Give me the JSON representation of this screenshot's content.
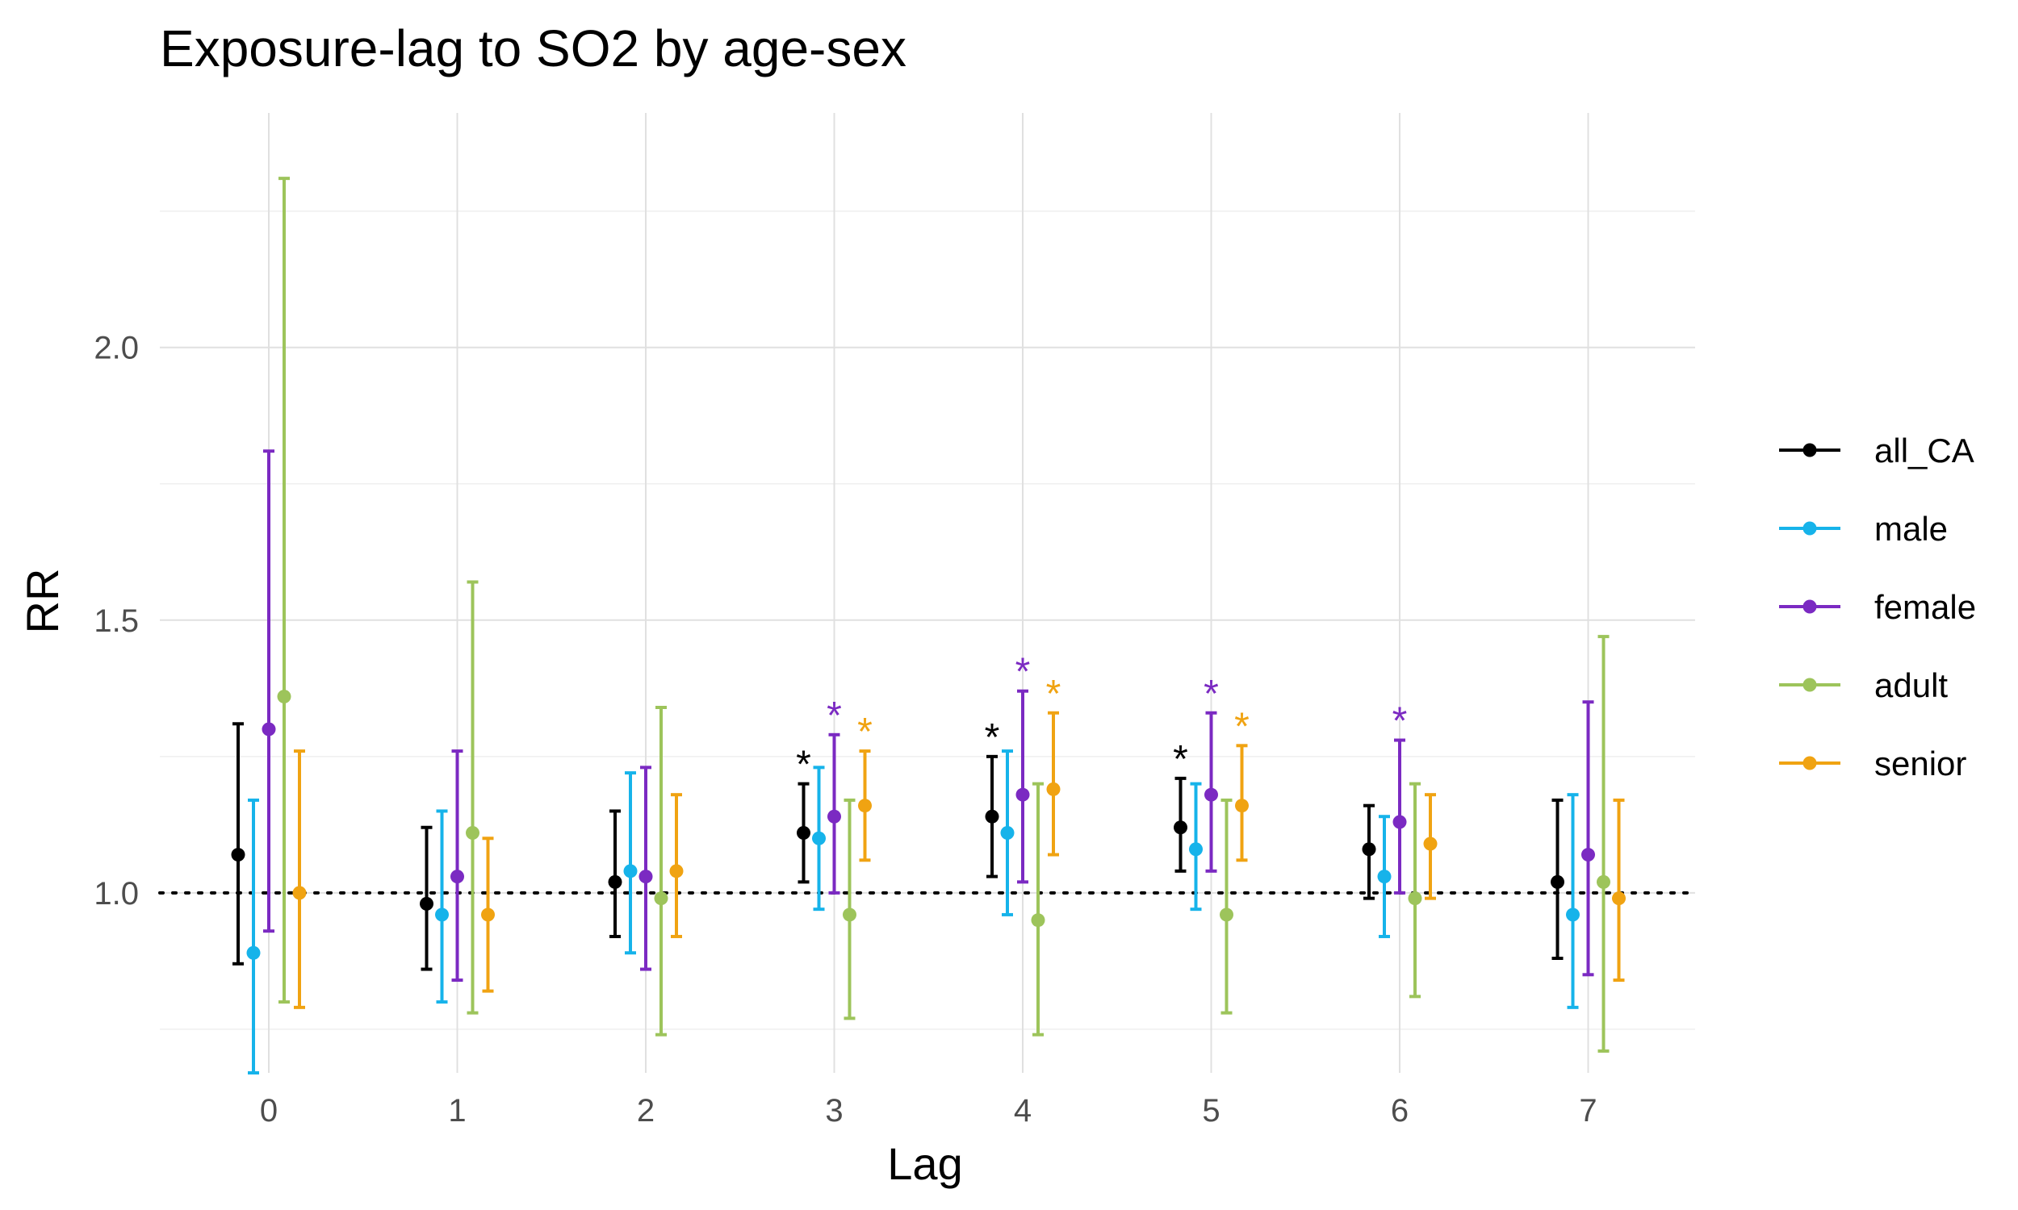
{
  "chart_data": {
    "type": "scatter",
    "title": "Exposure-lag to SO2 by age-sex",
    "xlabel": "Lag",
    "ylabel": "RR",
    "categories": [
      "0",
      "1",
      "2",
      "3",
      "4",
      "5",
      "6",
      "7"
    ],
    "ylim": [
      0.67,
      2.43
    ],
    "yticks": [
      "1.0",
      "1.5",
      "2.0"
    ],
    "ytick_values": [
      1.0,
      1.5,
      2.0
    ],
    "reference_line": 1.0,
    "legend_position": "right",
    "series": [
      {
        "name": "all_CA",
        "color": "#000000",
        "estimate": [
          1.07,
          0.98,
          1.02,
          1.11,
          1.14,
          1.12,
          1.08,
          1.02
        ],
        "lower": [
          0.87,
          0.86,
          0.92,
          1.02,
          1.03,
          1.04,
          0.99,
          0.88
        ],
        "upper": [
          1.31,
          1.12,
          1.15,
          1.2,
          1.25,
          1.21,
          1.16,
          1.17
        ],
        "significant": [
          false,
          false,
          false,
          true,
          true,
          true,
          false,
          false
        ]
      },
      {
        "name": "male",
        "color": "#16b3ea",
        "estimate": [
          0.89,
          0.96,
          1.04,
          1.1,
          1.11,
          1.08,
          1.03,
          0.96
        ],
        "lower": [
          0.67,
          0.8,
          0.89,
          0.97,
          0.96,
          0.97,
          0.92,
          0.79
        ],
        "upper": [
          1.17,
          1.15,
          1.22,
          1.23,
          1.26,
          1.2,
          1.14,
          1.18
        ],
        "significant": [
          false,
          false,
          false,
          false,
          false,
          false,
          false,
          false
        ]
      },
      {
        "name": "female",
        "color": "#7b2ac2",
        "estimate": [
          1.3,
          1.03,
          1.03,
          1.14,
          1.18,
          1.18,
          1.13,
          1.07
        ],
        "lower": [
          0.93,
          0.84,
          0.86,
          1.0,
          1.02,
          1.04,
          1.0,
          0.85
        ],
        "upper": [
          1.81,
          1.26,
          1.23,
          1.29,
          1.37,
          1.33,
          1.28,
          1.35
        ],
        "significant": [
          false,
          false,
          false,
          true,
          true,
          true,
          true,
          false
        ]
      },
      {
        "name": "adult",
        "color": "#9dc45b",
        "estimate": [
          1.36,
          1.11,
          0.99,
          0.96,
          0.95,
          0.96,
          0.99,
          1.02
        ],
        "lower": [
          0.8,
          0.78,
          0.74,
          0.77,
          0.74,
          0.78,
          0.81,
          0.71
        ],
        "upper": [
          2.31,
          1.57,
          1.34,
          1.17,
          1.2,
          1.17,
          1.2,
          1.47
        ],
        "significant": [
          false,
          false,
          false,
          false,
          false,
          false,
          false,
          false
        ]
      },
      {
        "name": "senior",
        "color": "#f0a312",
        "estimate": [
          1.0,
          0.96,
          1.04,
          1.16,
          1.19,
          1.16,
          1.09,
          0.99
        ],
        "lower": [
          0.79,
          0.82,
          0.92,
          1.06,
          1.07,
          1.06,
          0.99,
          0.84
        ],
        "upper": [
          1.26,
          1.1,
          1.18,
          1.26,
          1.33,
          1.27,
          1.18,
          1.17
        ],
        "significant": [
          false,
          false,
          false,
          true,
          true,
          true,
          false,
          false
        ]
      }
    ]
  }
}
